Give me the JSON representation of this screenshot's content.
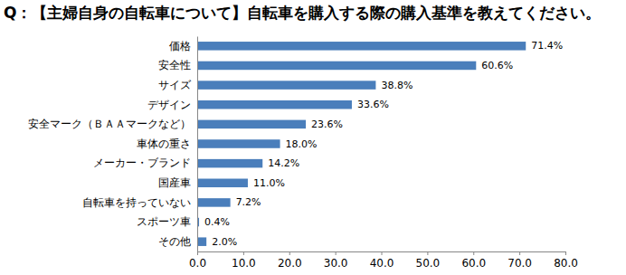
{
  "chart_data": {
    "type": "bar",
    "title": "Q：【主婦自身の自転車について】自転車を購入する際の購入基準を教えてください。",
    "orientation": "horizontal",
    "categories": [
      "価格",
      "安全性",
      "サイズ",
      "デザイン",
      "安全マーク（ＢＡＡマークなど）",
      "車体の重さ",
      "メーカー・ブランド",
      "国産車",
      "自転車を持っていない",
      "スポーツ車",
      "その他"
    ],
    "values": [
      71.4,
      60.6,
      38.8,
      33.6,
      23.6,
      18.0,
      14.2,
      11.0,
      7.2,
      0.4,
      2.0
    ],
    "value_labels": [
      "71.4%",
      "60.6%",
      "38.8%",
      "33.6%",
      "23.6%",
      "18.0%",
      "14.2%",
      "11.0%",
      "7.2%",
      "0.4%",
      "2.0%"
    ],
    "color": "#4a7ebb",
    "xlim": [
      0,
      80
    ],
    "xticks": [
      {
        "value": 0,
        "label": "0.0"
      },
      {
        "value": 10,
        "label": "10.0"
      },
      {
        "value": 20,
        "label": "20.0"
      },
      {
        "value": 30,
        "label": "30.0"
      },
      {
        "value": 40,
        "label": "40.0"
      },
      {
        "value": 50,
        "label": "50.0"
      },
      {
        "value": 60,
        "label": "60.0"
      },
      {
        "value": 70,
        "label": "70.0"
      },
      {
        "value": 80,
        "label": "80.0"
      }
    ],
    "grid": false,
    "data_labels": true
  }
}
